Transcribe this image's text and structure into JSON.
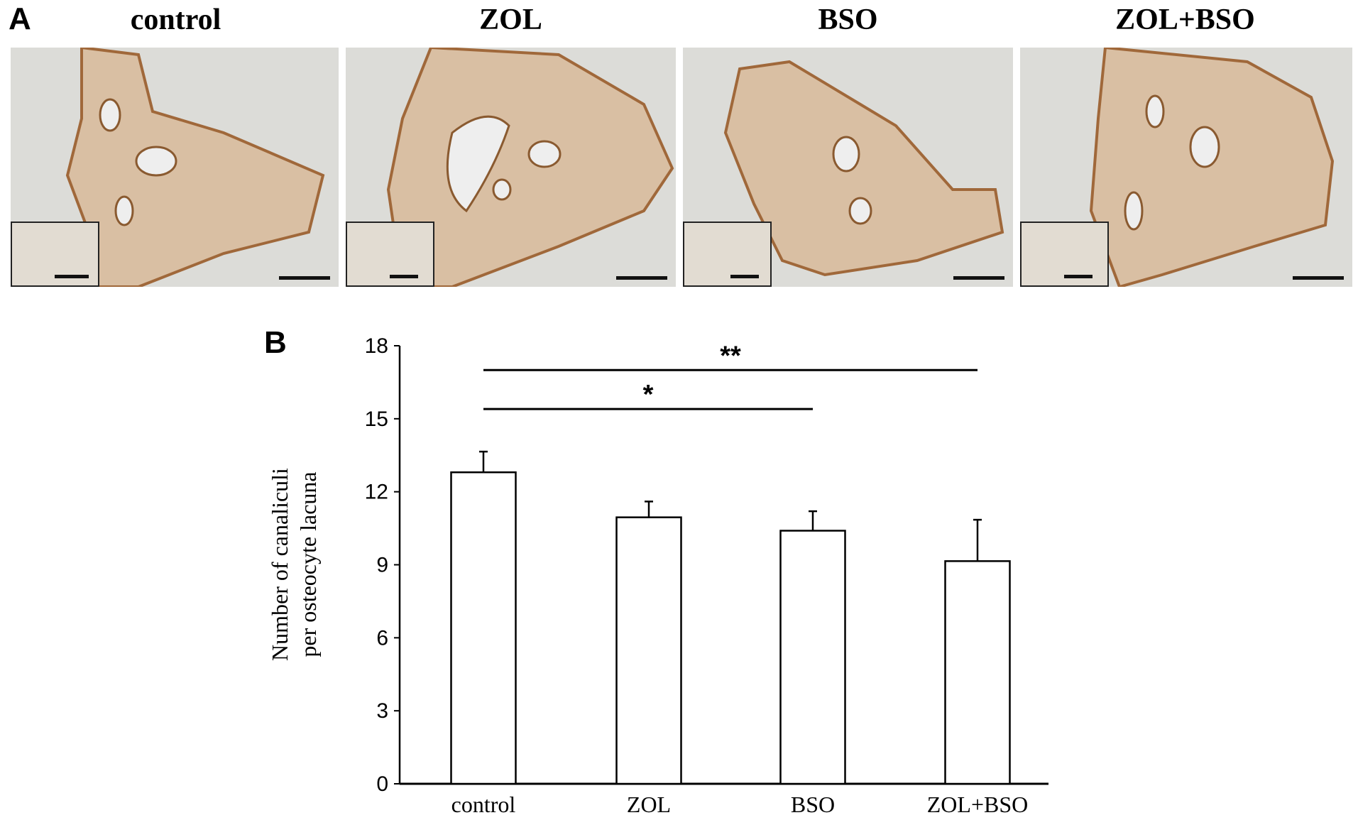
{
  "panel_a": {
    "letter": "A",
    "images": [
      {
        "title": "control"
      },
      {
        "title": "ZOL"
      },
      {
        "title": "BSO"
      },
      {
        "title": "ZOL+BSO"
      }
    ]
  },
  "panel_b": {
    "letter": "B"
  },
  "chart_data": {
    "type": "bar",
    "categories": [
      "control",
      "ZOL",
      "BSO",
      "ZOL+BSO"
    ],
    "values": [
      12.8,
      10.95,
      10.4,
      9.15
    ],
    "error_upper": [
      13.65,
      11.6,
      11.2,
      10.85
    ],
    "ylabel_line1": "Number of canaliculi",
    "ylabel_line2": "per osteocyte lacuna",
    "xlabel": "",
    "ylim": [
      0,
      18
    ],
    "yticks": [
      "0",
      "3",
      "6",
      "9",
      "12",
      "15",
      "18"
    ],
    "grid": false,
    "bar_fill": "#ffffff",
    "bar_stroke": "#000000",
    "significance": [
      {
        "from": "control",
        "to": "ZOL+BSO",
        "y": 17.0,
        "label": "**"
      },
      {
        "from": "control",
        "to": "BSO",
        "y": 15.4,
        "label": "*"
      }
    ]
  }
}
